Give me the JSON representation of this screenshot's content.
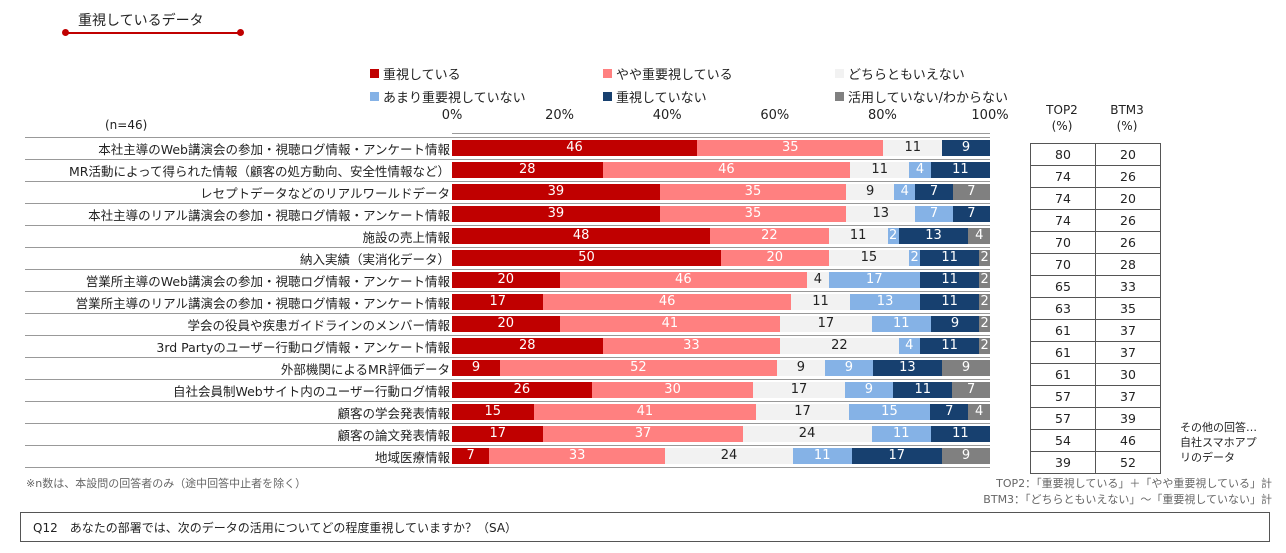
{
  "title": "重視しているデータ",
  "n_label": "(n=46)",
  "legend": [
    {
      "name": "重視している",
      "color": "#c00000"
    },
    {
      "name": "やや重要視している",
      "color": "#ff8080"
    },
    {
      "name": "どちらともいえない",
      "color": "#f2f2f2"
    },
    {
      "name": "あまり重要視していない",
      "color": "#85b2e6"
    },
    {
      "name": "重視していない",
      "color": "#17406f"
    },
    {
      "name": "活用していない/わからない",
      "color": "#808080"
    }
  ],
  "table": {
    "top2_header": "TOP2",
    "btm3_header": "BTM3",
    "unit": "(%)"
  },
  "chart_data": {
    "type": "bar",
    "orientation": "horizontal",
    "stacked": "100%",
    "x_ticks": [
      "0%",
      "20%",
      "40%",
      "60%",
      "80%",
      "100%"
    ],
    "xlim": [
      0,
      100
    ],
    "categories": [
      "本社主導のWeb講演会の参加・視聴ログ情報・アンケート情報",
      "MR活動によって得られた情報（顧客の処方動向、安全性情報など）",
      "レセプトデータなどのリアルワールドデータ",
      "本社主導のリアル講演会の参加・視聴ログ情報・アンケート情報",
      "施設の売上情報",
      "納入実績（実消化データ）",
      "営業所主導のWeb講演会の参加・視聴ログ情報・アンケート情報",
      "営業所主導のリアル講演会の参加・視聴ログ情報・アンケート情報",
      "学会の役員や疾患ガイドラインのメンバー情報",
      "3rd Partyのユーザー行動ログ情報・アンケート情報",
      "外部機関によるMR評価データ",
      "自社会員制Webサイト内のユーザー行動ログ情報",
      "顧客の学会発表情報",
      "顧客の論文発表情報",
      "地域医療情報"
    ],
    "series": [
      {
        "name": "重視している",
        "values": [
          46,
          28,
          39,
          39,
          48,
          50,
          20,
          17,
          20,
          28,
          9,
          26,
          15,
          17,
          7
        ]
      },
      {
        "name": "やや重要視している",
        "values": [
          35,
          46,
          35,
          35,
          22,
          20,
          46,
          46,
          41,
          33,
          52,
          30,
          41,
          37,
          33
        ]
      },
      {
        "name": "どちらともいえない",
        "values": [
          11,
          11,
          9,
          13,
          11,
          15,
          4,
          11,
          17,
          22,
          9,
          17,
          17,
          24,
          24
        ]
      },
      {
        "name": "あまり重要視していない",
        "values": [
          0,
          4,
          4,
          7,
          2,
          2,
          17,
          13,
          11,
          4,
          9,
          9,
          15,
          11,
          11
        ]
      },
      {
        "name": "重視していない",
        "values": [
          9,
          11,
          7,
          7,
          13,
          11,
          11,
          11,
          9,
          11,
          13,
          11,
          7,
          11,
          17
        ]
      },
      {
        "name": "活用していない/わからない",
        "values": [
          0,
          0,
          7,
          0,
          4,
          2,
          2,
          2,
          2,
          2,
          9,
          7,
          4,
          0,
          9
        ]
      }
    ],
    "top2": [
      80,
      74,
      74,
      74,
      70,
      70,
      65,
      63,
      61,
      61,
      61,
      57,
      57,
      54,
      39
    ],
    "btm3": [
      20,
      26,
      20,
      26,
      26,
      28,
      33,
      35,
      37,
      37,
      30,
      37,
      39,
      46,
      52
    ]
  },
  "side_note": [
    "その他の回答…",
    "自社スマホアプ",
    "リのデータ"
  ],
  "footnote": "※n数は、本設問の回答者のみ（途中回答中止者を除く）",
  "def_top2": "TOP2：「重要視している」＋「やや重要視している」計",
  "def_btm3": "BTM3：「どちらともいえない」〜「重要視していない」計",
  "question": "Q12　あなたの部署では、次のデータの活用についてどの程度重視していますか？（SA）"
}
